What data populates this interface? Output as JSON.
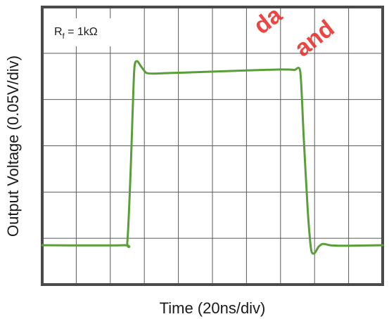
{
  "chart_data": {
    "type": "line",
    "xlabel": "Time (20ns/div)",
    "ylabel": "Output Voltage (0.05V/div)",
    "annotation": {
      "symbol": "R",
      "subscript": "f",
      "value": " = 1kΩ"
    },
    "x_divisions": 10,
    "y_divisions": 6,
    "xlim": [
      0,
      10
    ],
    "ylim": [
      0,
      6
    ],
    "grid": true,
    "series": [
      {
        "color": "#5a9e3a",
        "x": [
          0,
          2.4,
          2.5,
          2.6,
          2.7,
          2.78,
          2.9,
          3.05,
          3.25,
          3.6,
          4.5,
          6.0,
          7.0,
          7.4,
          7.58,
          7.68,
          7.8,
          7.9,
          8.0,
          8.12,
          8.25,
          8.45,
          8.7,
          9.0,
          10.0
        ],
        "y": [
          0.85,
          0.85,
          0.92,
          2.5,
          4.6,
          4.83,
          4.72,
          4.58,
          4.56,
          4.57,
          4.59,
          4.63,
          4.65,
          4.64,
          4.6,
          3.2,
          1.6,
          0.75,
          0.68,
          0.82,
          0.88,
          0.85,
          0.84,
          0.84,
          0.85
        ]
      }
    ]
  },
  "watermark": {
    "line1": "da",
    "line2": "and"
  }
}
